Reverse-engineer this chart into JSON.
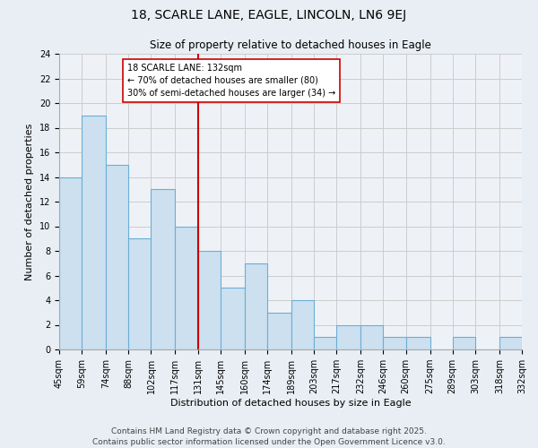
{
  "title": "18, SCARLE LANE, EAGLE, LINCOLN, LN6 9EJ",
  "subtitle": "Size of property relative to detached houses in Eagle",
  "xlabel": "Distribution of detached houses by size in Eagle",
  "ylabel": "Number of detached properties",
  "bin_edges": [
    45,
    59,
    74,
    88,
    102,
    117,
    131,
    145,
    160,
    174,
    189,
    203,
    217,
    232,
    246,
    260,
    275,
    289,
    303,
    318,
    332
  ],
  "counts": [
    14,
    19,
    15,
    9,
    13,
    10,
    8,
    5,
    7,
    3,
    4,
    1,
    2,
    2,
    1,
    1,
    0,
    1,
    0,
    1
  ],
  "bar_facecolor": "#cce0f0",
  "bar_edgecolor": "#6baed6",
  "property_line_x": 131,
  "property_line_color": "#cc0000",
  "annotation_title": "18 SCARLE LANE: 132sqm",
  "annotation_line1": "← 70% of detached houses are smaller (80)",
  "annotation_line2": "30% of semi-detached houses are larger (34) →",
  "annotation_box_edgecolor": "#cc0000",
  "annotation_box_facecolor": "#ffffff",
  "ylim": [
    0,
    24
  ],
  "yticks": [
    0,
    2,
    4,
    6,
    8,
    10,
    12,
    14,
    16,
    18,
    20,
    22,
    24
  ],
  "background_color": "#e8eef4",
  "plot_background_color": "#eef2f7",
  "footer_line1": "Contains HM Land Registry data © Crown copyright and database right 2025.",
  "footer_line2": "Contains public sector information licensed under the Open Government Licence v3.0.",
  "grid_color": "#cccccc",
  "title_fontsize": 10,
  "subtitle_fontsize": 8.5,
  "xlabel_fontsize": 8,
  "ylabel_fontsize": 8,
  "tick_fontsize": 7,
  "footer_fontsize": 6.5
}
